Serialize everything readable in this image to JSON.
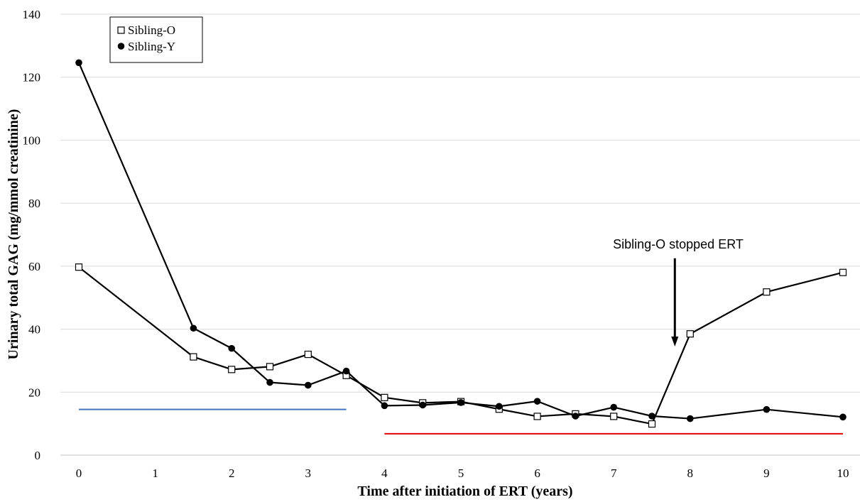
{
  "chart_data": {
    "type": "line",
    "xlabel": "Time after initiation of ERT (years)",
    "ylabel": "Urinary total GAG (mg/mmol creatinine)",
    "xlim": [
      0,
      10
    ],
    "ylim": [
      0,
      140
    ],
    "xticks": [
      "0",
      "1",
      "2",
      "3",
      "4",
      "5",
      "6",
      "7",
      "8",
      "9",
      "10"
    ],
    "yticks": [
      "0",
      "20",
      "40",
      "60",
      "80",
      "100",
      "120",
      "140"
    ],
    "grid": "horizontal",
    "legend_position": "top-left",
    "series": [
      {
        "name": "Sibling-O",
        "marker": "open-square",
        "color": "#000000",
        "x": [
          0,
          1.5,
          2,
          2.5,
          3,
          3.5,
          4,
          4.5,
          5,
          5.5,
          6,
          6.5,
          7,
          7.5,
          8,
          9,
          10
        ],
        "y": [
          59.7,
          31.2,
          27.2,
          28.1,
          32.0,
          25.3,
          18.3,
          16.6,
          17.0,
          14.6,
          12.3,
          13.1,
          12.3,
          9.9,
          38.5,
          51.8,
          58.0
        ]
      },
      {
        "name": "Sibling-Y",
        "marker": "filled-circle",
        "color": "#000000",
        "x": [
          0,
          1.5,
          2,
          2.5,
          3,
          3.5,
          4,
          4.5,
          5,
          5.5,
          6,
          6.5,
          7,
          7.5,
          8,
          9,
          10
        ],
        "y": [
          124.6,
          40.3,
          33.9,
          23.1,
          22.2,
          26.7,
          15.7,
          15.9,
          16.7,
          15.5,
          17.1,
          12.4,
          15.2,
          12.4,
          11.6,
          14.5,
          12.1
        ]
      }
    ],
    "reference_lines": [
      {
        "color": "#4472C4",
        "x": [
          0,
          3.5
        ],
        "y": 14.5
      },
      {
        "color": "#E00000",
        "x": [
          4,
          10
        ],
        "y": 6.8
      }
    ],
    "annotation": {
      "text": "Sibling-O stopped ERT",
      "x": 7.8,
      "y_from": 62.5,
      "y_to": 34.5
    }
  }
}
